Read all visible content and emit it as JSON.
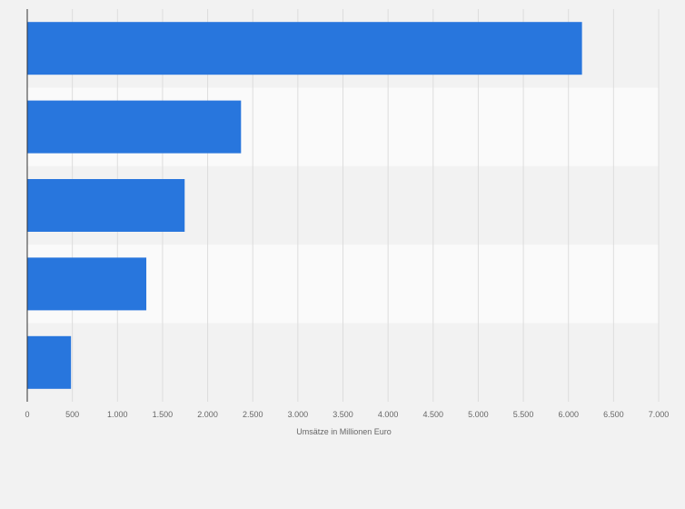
{
  "chart_data": {
    "type": "bar",
    "orientation": "horizontal",
    "categories": [
      "",
      "",
      "",
      "",
      ""
    ],
    "values": [
      6150,
      2370,
      1745,
      1320,
      485
    ],
    "title": "",
    "xlabel": "Umsätze in Millionen Euro",
    "ylabel": "",
    "xlim": [
      0,
      7000
    ],
    "xticks": [
      0,
      500,
      1000,
      1500,
      2000,
      2500,
      3000,
      3500,
      4000,
      4500,
      5000,
      5500,
      6000,
      6500,
      7000
    ],
    "xtick_labels": [
      "0",
      "500",
      "1.000",
      "1.500",
      "2.000",
      "2.500",
      "3.000",
      "3.500",
      "4.000",
      "4.500",
      "5.000",
      "5.500",
      "6.000",
      "6.500",
      "7.000"
    ],
    "grid": true,
    "legend": "none",
    "colors": {
      "bar": "#2876dd",
      "band_light": "#fafafa",
      "band_dark": "#f2f2f2",
      "grid": "#dddddd",
      "axis": "#333333"
    }
  }
}
